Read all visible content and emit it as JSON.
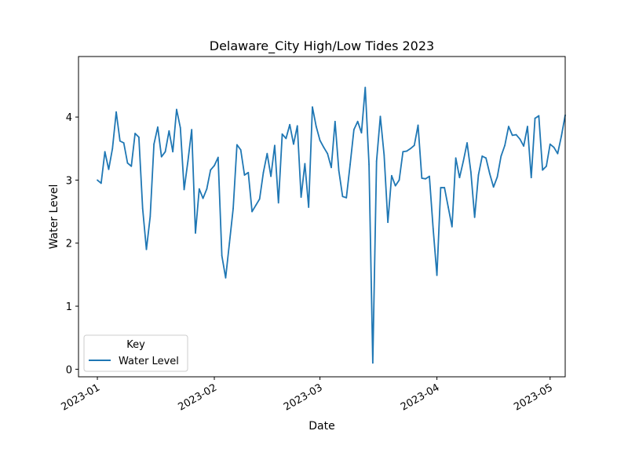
{
  "chart_data": {
    "type": "line",
    "title": "Delaware_City High/Low Tides 2023",
    "xlabel": "Date",
    "ylabel": "Water Level",
    "x_range": [
      "2022-12-27",
      "2023-05-05"
    ],
    "ylim": [
      -0.12,
      4.96
    ],
    "grid": false,
    "x_ticks": [
      "2023-01-01",
      "2023-02-01",
      "2023-03-01",
      "2023-04-01",
      "2023-05-01"
    ],
    "x_tick_labels": [
      "2023-01",
      "2023-02",
      "2023-03",
      "2023-04",
      "2023-05"
    ],
    "y_ticks": [
      0,
      1,
      2,
      3,
      4
    ],
    "y_tick_labels": [
      "0",
      "1",
      "2",
      "3",
      "4"
    ],
    "legend": {
      "title": "Key",
      "position": "lower-left"
    },
    "series": [
      {
        "name": "Water Level",
        "color": "#1f77b4",
        "points": [
          [
            "2023-01-01",
            3.0
          ],
          [
            "2023-01-02",
            2.95
          ],
          [
            "2023-01-03",
            3.45
          ],
          [
            "2023-01-04",
            3.17
          ],
          [
            "2023-01-05",
            3.5
          ],
          [
            "2023-01-06",
            4.08
          ],
          [
            "2023-01-07",
            3.62
          ],
          [
            "2023-01-08",
            3.59
          ],
          [
            "2023-01-09",
            3.27
          ],
          [
            "2023-01-10",
            3.22
          ],
          [
            "2023-01-11",
            3.74
          ],
          [
            "2023-01-12",
            3.68
          ],
          [
            "2023-01-13",
            2.55
          ],
          [
            "2023-01-14",
            1.9
          ],
          [
            "2023-01-15",
            2.42
          ],
          [
            "2023-01-16",
            3.57
          ],
          [
            "2023-01-17",
            3.84
          ],
          [
            "2023-01-18",
            3.37
          ],
          [
            "2023-01-19",
            3.45
          ],
          [
            "2023-01-20",
            3.78
          ],
          [
            "2023-01-21",
            3.45
          ],
          [
            "2023-01-22",
            4.12
          ],
          [
            "2023-01-23",
            3.83
          ],
          [
            "2023-01-24",
            2.85
          ],
          [
            "2023-01-25",
            3.3
          ],
          [
            "2023-01-26",
            3.8
          ],
          [
            "2023-01-27",
            2.16
          ],
          [
            "2023-01-28",
            2.86
          ],
          [
            "2023-01-29",
            2.71
          ],
          [
            "2023-01-30",
            2.86
          ],
          [
            "2023-01-31",
            3.16
          ],
          [
            "2023-02-01",
            3.23
          ],
          [
            "2023-02-02",
            3.36
          ],
          [
            "2023-02-03",
            1.8
          ],
          [
            "2023-02-04",
            1.45
          ],
          [
            "2023-02-05",
            2.0
          ],
          [
            "2023-02-06",
            2.55
          ],
          [
            "2023-02-07",
            3.56
          ],
          [
            "2023-02-08",
            3.48
          ],
          [
            "2023-02-09",
            3.08
          ],
          [
            "2023-02-10",
            3.12
          ],
          [
            "2023-02-11",
            2.5
          ],
          [
            "2023-02-12",
            2.6
          ],
          [
            "2023-02-13",
            2.7
          ],
          [
            "2023-02-14",
            3.12
          ],
          [
            "2023-02-15",
            3.42
          ],
          [
            "2023-02-16",
            3.06
          ],
          [
            "2023-02-17",
            3.55
          ],
          [
            "2023-02-18",
            2.64
          ],
          [
            "2023-02-19",
            3.73
          ],
          [
            "2023-02-20",
            3.66
          ],
          [
            "2023-02-21",
            3.88
          ],
          [
            "2023-02-22",
            3.57
          ],
          [
            "2023-02-23",
            3.86
          ],
          [
            "2023-02-24",
            2.73
          ],
          [
            "2023-02-25",
            3.26
          ],
          [
            "2023-02-26",
            2.57
          ],
          [
            "2023-02-27",
            4.16
          ],
          [
            "2023-02-28",
            3.85
          ],
          [
            "2023-03-01",
            3.63
          ],
          [
            "2023-03-02",
            3.52
          ],
          [
            "2023-03-03",
            3.42
          ],
          [
            "2023-03-04",
            3.2
          ],
          [
            "2023-03-05",
            3.93
          ],
          [
            "2023-03-06",
            3.15
          ],
          [
            "2023-03-07",
            2.74
          ],
          [
            "2023-03-08",
            2.72
          ],
          [
            "2023-03-09",
            3.25
          ],
          [
            "2023-03-10",
            3.8
          ],
          [
            "2023-03-11",
            3.93
          ],
          [
            "2023-03-12",
            3.75
          ],
          [
            "2023-03-13",
            4.47
          ],
          [
            "2023-03-14",
            3.25
          ],
          [
            "2023-03-15",
            0.1
          ],
          [
            "2023-03-16",
            3.3
          ],
          [
            "2023-03-17",
            4.01
          ],
          [
            "2023-03-18",
            3.4
          ],
          [
            "2023-03-19",
            2.33
          ],
          [
            "2023-03-20",
            3.07
          ],
          [
            "2023-03-21",
            2.91
          ],
          [
            "2023-03-22",
            3.0
          ],
          [
            "2023-03-23",
            3.45
          ],
          [
            "2023-03-24",
            3.46
          ],
          [
            "2023-03-25",
            3.5
          ],
          [
            "2023-03-26",
            3.55
          ],
          [
            "2023-03-27",
            3.87
          ],
          [
            "2023-03-28",
            3.03
          ],
          [
            "2023-03-29",
            3.02
          ],
          [
            "2023-03-30",
            3.06
          ],
          [
            "2023-03-31",
            2.23
          ],
          [
            "2023-04-01",
            1.49
          ],
          [
            "2023-04-02",
            2.88
          ],
          [
            "2023-04-03",
            2.88
          ],
          [
            "2023-04-04",
            2.57
          ],
          [
            "2023-04-05",
            2.26
          ],
          [
            "2023-04-06",
            3.35
          ],
          [
            "2023-04-07",
            3.04
          ],
          [
            "2023-04-08",
            3.3
          ],
          [
            "2023-04-09",
            3.59
          ],
          [
            "2023-04-10",
            3.13
          ],
          [
            "2023-04-11",
            2.41
          ],
          [
            "2023-04-12",
            3.08
          ],
          [
            "2023-04-13",
            3.38
          ],
          [
            "2023-04-14",
            3.35
          ],
          [
            "2023-04-15",
            3.1
          ],
          [
            "2023-04-16",
            2.89
          ],
          [
            "2023-04-17",
            3.05
          ],
          [
            "2023-04-18",
            3.38
          ],
          [
            "2023-04-19",
            3.55
          ],
          [
            "2023-04-20",
            3.85
          ],
          [
            "2023-04-21",
            3.71
          ],
          [
            "2023-04-22",
            3.72
          ],
          [
            "2023-04-23",
            3.65
          ],
          [
            "2023-04-24",
            3.54
          ],
          [
            "2023-04-25",
            3.85
          ],
          [
            "2023-04-26",
            3.04
          ],
          [
            "2023-04-27",
            3.98
          ],
          [
            "2023-04-28",
            4.02
          ],
          [
            "2023-04-29",
            3.16
          ],
          [
            "2023-04-30",
            3.22
          ],
          [
            "2023-05-01",
            3.57
          ],
          [
            "2023-05-02",
            3.52
          ],
          [
            "2023-05-03",
            3.42
          ],
          [
            "2023-05-04",
            3.7
          ],
          [
            "2023-05-05",
            4.03
          ]
        ]
      }
    ]
  }
}
